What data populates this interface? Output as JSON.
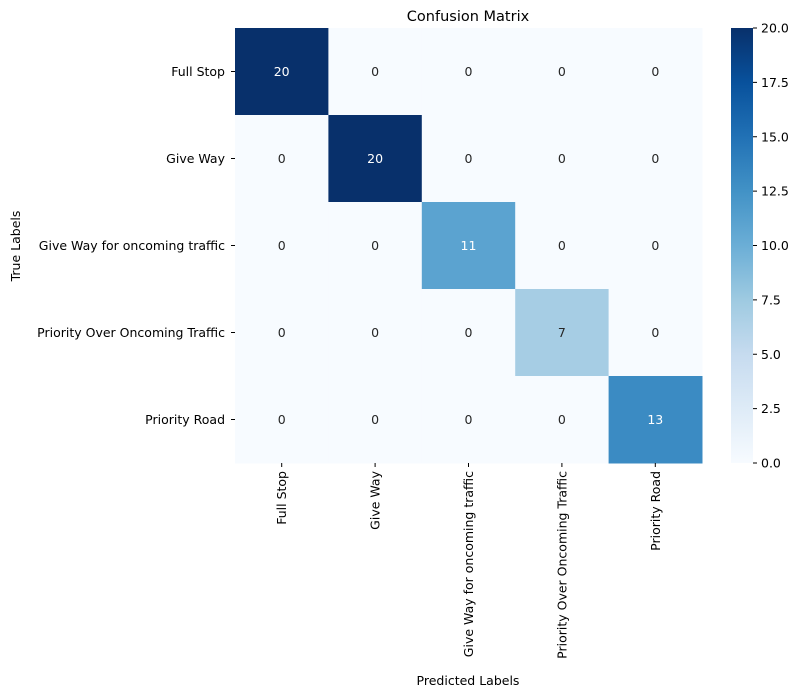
{
  "chart_data": {
    "type": "heatmap",
    "title": "Confusion Matrix",
    "xlabel": "Predicted Labels",
    "ylabel": "True Labels",
    "x_categories": [
      "Full Stop",
      "Give Way",
      "Give Way for oncoming traffic",
      "Priority Over Oncoming Traffic",
      "Priority Road"
    ],
    "y_categories": [
      "Full Stop",
      "Give Way",
      "Give Way for oncoming traffic",
      "Priority Over Oncoming Traffic",
      "Priority Road"
    ],
    "values": [
      [
        20,
        0,
        0,
        0,
        0
      ],
      [
        0,
        20,
        0,
        0,
        0
      ],
      [
        0,
        0,
        11,
        0,
        0
      ],
      [
        0,
        0,
        0,
        7,
        0
      ],
      [
        0,
        0,
        0,
        0,
        13
      ]
    ],
    "colormap": "Blues",
    "colormap_stops": [
      "#f7fbff",
      "#deebf7",
      "#c6dbef",
      "#9ecae1",
      "#6baed6",
      "#4292c6",
      "#2171b5",
      "#08519c",
      "#08306b"
    ],
    "colorbar": {
      "range": [
        0,
        20
      ],
      "ticks": [
        "0.0",
        "2.5",
        "5.0",
        "7.5",
        "10.0",
        "12.5",
        "15.0",
        "17.5",
        "20.0"
      ]
    },
    "annotations": true
  }
}
